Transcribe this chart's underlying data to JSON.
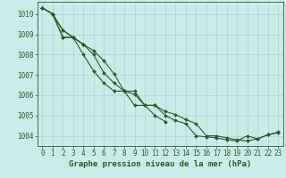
{
  "title": "Graphe pression niveau de la mer (hPa)",
  "background_color": "#cceaea",
  "grid_color": "#aad4d4",
  "line_color": "#2d5a27",
  "spine_color": "#2d5a27",
  "xlim": [
    -0.5,
    23.5
  ],
  "ylim": [
    1003.5,
    1010.6
  ],
  "yticks": [
    1004,
    1005,
    1006,
    1007,
    1008,
    1009,
    1010
  ],
  "xticks": [
    0,
    1,
    2,
    3,
    4,
    5,
    6,
    7,
    8,
    9,
    10,
    11,
    12,
    13,
    14,
    15,
    16,
    17,
    18,
    19,
    20,
    21,
    22,
    23
  ],
  "tick_fontsize": 5.5,
  "label_fontsize": 6.5,
  "series": [
    {
      "x": [
        0,
        1,
        2,
        3,
        4,
        5,
        6,
        7,
        8,
        9,
        10,
        11,
        12,
        13,
        14,
        15,
        16,
        17,
        18,
        19,
        20,
        21,
        22,
        23
      ],
      "y": [
        1010.3,
        1010.0,
        1009.2,
        1008.85,
        1008.0,
        1007.2,
        1006.6,
        1006.2,
        1006.2,
        1006.05,
        1005.5,
        1005.5,
        1005.0,
        1004.75,
        1004.6,
        1004.0,
        1003.95,
        1003.9,
        1003.8,
        1003.75,
        1004.0,
        1003.85,
        1004.05,
        1004.15
      ]
    },
    {
      "x": [
        0,
        1,
        2,
        3,
        4,
        5,
        6,
        7,
        8,
        9,
        10,
        11,
        12,
        13,
        14,
        15,
        16,
        17,
        18,
        19,
        20,
        21,
        22,
        23
      ],
      "y": [
        1010.3,
        1010.0,
        1008.85,
        1008.85,
        1008.5,
        1008.0,
        1007.1,
        1006.6,
        1006.2,
        1006.2,
        1005.5,
        1005.5,
        1005.2,
        1005.05,
        1004.8,
        1004.6,
        1004.0,
        1004.0,
        1003.9,
        1003.8,
        1003.75,
        1003.85,
        1004.05,
        1004.18
      ]
    },
    {
      "x": [
        0,
        1,
        2,
        3,
        4,
        5,
        6,
        7,
        8,
        9,
        10,
        11,
        12
      ],
      "y": [
        1010.3,
        1010.0,
        1008.85,
        1008.85,
        1008.5,
        1008.2,
        1007.7,
        1007.05,
        1006.2,
        1005.5,
        1005.5,
        1005.0,
        1004.7
      ]
    },
    {
      "x": [
        0,
        1,
        2,
        3,
        4
      ],
      "y": [
        1010.3,
        1010.0,
        1009.2,
        1008.85,
        1008.5
      ]
    }
  ]
}
